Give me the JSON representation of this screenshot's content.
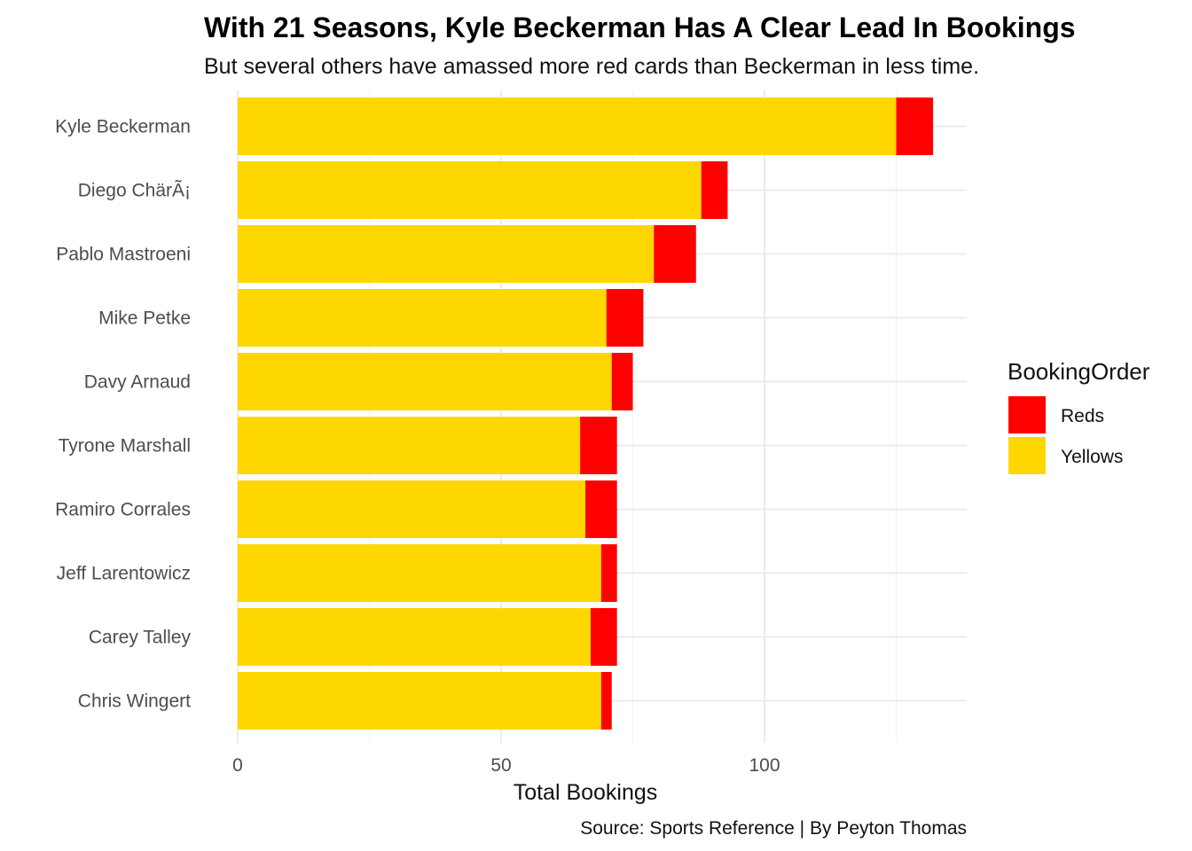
{
  "chart_data": {
    "type": "bar",
    "orientation": "horizontal",
    "stacked": true,
    "title": "With 21 Seasons, Kyle Beckerman Has A Clear Lead In Bookings",
    "subtitle": "But several others have amassed more red cards than Beckerman in less time.",
    "xlabel": "Total Bookings",
    "ylabel": "",
    "caption": "Source: Sports Reference | By Peyton Thomas",
    "categories": [
      "Kyle Beckerman",
      "Diego ChärÃ¡",
      "Pablo Mastroeni",
      "Mike Petke",
      "Davy Arnaud",
      "Tyrone Marshall",
      "Ramiro Corrales",
      "Jeff Larentowicz",
      "Carey Talley",
      "Chris Wingert"
    ],
    "series": [
      {
        "name": "Yellows",
        "color": "#FFD700",
        "values": [
          125,
          88,
          79,
          70,
          71,
          65,
          66,
          69,
          67,
          69
        ]
      },
      {
        "name": "Reds",
        "color": "#FF0000",
        "values": [
          7,
          5,
          8,
          7,
          4,
          7,
          6,
          3,
          5,
          2
        ]
      }
    ],
    "xlim": [
      0,
      138
    ],
    "xticks": [
      "0",
      "50",
      "100"
    ],
    "xtick_values": [
      0,
      50,
      100
    ],
    "grid": true,
    "legend": {
      "title": "BookingOrder",
      "position": "right",
      "entries": [
        {
          "label": "Reds",
          "color": "#FF0000"
        },
        {
          "label": "Yellows",
          "color": "#FFD700"
        }
      ]
    }
  }
}
